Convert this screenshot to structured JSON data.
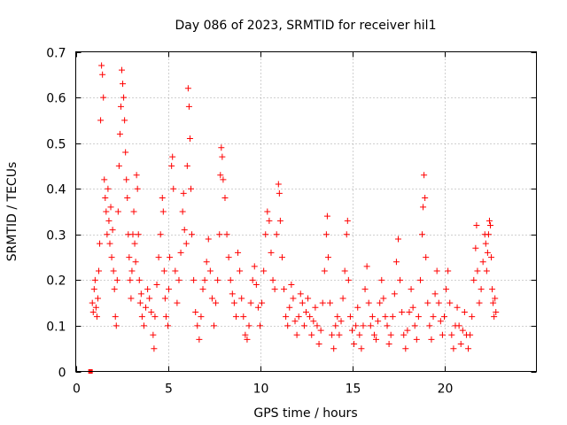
{
  "chart_data": {
    "type": "scatter",
    "title": "Day 086 of 2023, SRMTID for receiver hil1",
    "xlabel": "GPS time / hours",
    "ylabel": "SRMTID / TECUs",
    "xlim": [
      0,
      25
    ],
    "ylim": [
      0,
      0.7
    ],
    "xticks": [
      0,
      5,
      10,
      15,
      20
    ],
    "yticks": [
      0,
      0.1,
      0.2,
      0.3,
      0.4,
      0.5,
      0.6,
      0.7
    ],
    "xtick_labels": [
      "0",
      "5",
      "10",
      "15",
      "20"
    ],
    "ytick_labels": [
      "0",
      "0.1",
      "0.2",
      "0.3",
      "0.4",
      "0.5",
      "0.6",
      "0.7"
    ],
    "grid": true,
    "marker": "plus",
    "color": "#ff0000",
    "outlier_points": [
      {
        "x": 0.8,
        "y": 0.0
      }
    ],
    "series": [
      {
        "name": "SRMTID",
        "points": [
          [
            0.9,
            0.15
          ],
          [
            0.95,
            0.13
          ],
          [
            1.0,
            0.18
          ],
          [
            1.05,
            0.2
          ],
          [
            1.1,
            0.14
          ],
          [
            1.15,
            0.12
          ],
          [
            1.2,
            0.16
          ],
          [
            1.25,
            0.22
          ],
          [
            1.3,
            0.28
          ],
          [
            1.35,
            0.55
          ],
          [
            1.4,
            0.67
          ],
          [
            1.45,
            0.65
          ],
          [
            1.5,
            0.6
          ],
          [
            1.55,
            0.42
          ],
          [
            1.6,
            0.38
          ],
          [
            1.65,
            0.35
          ],
          [
            1.7,
            0.3
          ],
          [
            1.75,
            0.4
          ],
          [
            1.8,
            0.33
          ],
          [
            1.85,
            0.28
          ],
          [
            1.9,
            0.36
          ],
          [
            1.95,
            0.25
          ],
          [
            2.0,
            0.31
          ],
          [
            2.05,
            0.22
          ],
          [
            2.1,
            0.18
          ],
          [
            2.15,
            0.12
          ],
          [
            2.2,
            0.1
          ],
          [
            2.25,
            0.2
          ],
          [
            2.3,
            0.35
          ],
          [
            2.35,
            0.45
          ],
          [
            2.4,
            0.52
          ],
          [
            2.45,
            0.58
          ],
          [
            2.5,
            0.66
          ],
          [
            2.55,
            0.63
          ],
          [
            2.6,
            0.6
          ],
          [
            2.65,
            0.55
          ],
          [
            2.7,
            0.48
          ],
          [
            2.75,
            0.42
          ],
          [
            2.8,
            0.38
          ],
          [
            2.85,
            0.3
          ],
          [
            2.9,
            0.25
          ],
          [
            2.95,
            0.2
          ],
          [
            3.0,
            0.16
          ],
          [
            3.05,
            0.22
          ],
          [
            3.1,
            0.3
          ],
          [
            3.15,
            0.35
          ],
          [
            3.2,
            0.28
          ],
          [
            3.25,
            0.24
          ],
          [
            3.3,
            0.43
          ],
          [
            3.35,
            0.4
          ],
          [
            3.4,
            0.3
          ],
          [
            3.45,
            0.2
          ],
          [
            3.5,
            0.15
          ],
          [
            3.55,
            0.17
          ],
          [
            3.6,
            0.12
          ],
          [
            3.7,
            0.1
          ],
          [
            3.8,
            0.14
          ],
          [
            3.9,
            0.18
          ],
          [
            4.0,
            0.16
          ],
          [
            4.1,
            0.13
          ],
          [
            4.2,
            0.08
          ],
          [
            4.25,
            0.05
          ],
          [
            4.3,
            0.12
          ],
          [
            4.4,
            0.19
          ],
          [
            4.5,
            0.25
          ],
          [
            4.6,
            0.3
          ],
          [
            4.7,
            0.38
          ],
          [
            4.75,
            0.35
          ],
          [
            4.8,
            0.22
          ],
          [
            4.85,
            0.16
          ],
          [
            4.9,
            0.12
          ],
          [
            5.0,
            0.1
          ],
          [
            5.05,
            0.18
          ],
          [
            5.1,
            0.25
          ],
          [
            5.2,
            0.45
          ],
          [
            5.25,
            0.47
          ],
          [
            5.3,
            0.4
          ],
          [
            5.4,
            0.22
          ],
          [
            5.5,
            0.15
          ],
          [
            5.6,
            0.2
          ],
          [
            5.7,
            0.26
          ],
          [
            5.8,
            0.35
          ],
          [
            5.85,
            0.39
          ],
          [
            5.9,
            0.31
          ],
          [
            6.0,
            0.28
          ],
          [
            6.05,
            0.45
          ],
          [
            6.1,
            0.62
          ],
          [
            6.15,
            0.58
          ],
          [
            6.2,
            0.51
          ],
          [
            6.25,
            0.4
          ],
          [
            6.3,
            0.3
          ],
          [
            6.4,
            0.2
          ],
          [
            6.5,
            0.13
          ],
          [
            6.6,
            0.1
          ],
          [
            6.7,
            0.07
          ],
          [
            6.8,
            0.12
          ],
          [
            6.9,
            0.18
          ],
          [
            7.0,
            0.2
          ],
          [
            7.1,
            0.24
          ],
          [
            7.2,
            0.29
          ],
          [
            7.3,
            0.22
          ],
          [
            7.4,
            0.16
          ],
          [
            7.5,
            0.1
          ],
          [
            7.6,
            0.15
          ],
          [
            7.7,
            0.2
          ],
          [
            7.8,
            0.3
          ],
          [
            7.85,
            0.43
          ],
          [
            7.9,
            0.49
          ],
          [
            7.95,
            0.47
          ],
          [
            8.0,
            0.42
          ],
          [
            8.1,
            0.38
          ],
          [
            8.2,
            0.3
          ],
          [
            8.3,
            0.25
          ],
          [
            8.4,
            0.2
          ],
          [
            8.5,
            0.17
          ],
          [
            8.6,
            0.15
          ],
          [
            8.7,
            0.12
          ],
          [
            8.8,
            0.26
          ],
          [
            8.9,
            0.22
          ],
          [
            9.0,
            0.16
          ],
          [
            9.1,
            0.12
          ],
          [
            9.2,
            0.08
          ],
          [
            9.3,
            0.07
          ],
          [
            9.4,
            0.1
          ],
          [
            9.5,
            0.15
          ],
          [
            9.6,
            0.2
          ],
          [
            9.7,
            0.23
          ],
          [
            9.8,
            0.19
          ],
          [
            9.9,
            0.14
          ],
          [
            10.0,
            0.1
          ],
          [
            10.1,
            0.15
          ],
          [
            10.2,
            0.22
          ],
          [
            10.3,
            0.3
          ],
          [
            10.4,
            0.35
          ],
          [
            10.5,
            0.33
          ],
          [
            10.6,
            0.26
          ],
          [
            10.7,
            0.2
          ],
          [
            10.8,
            0.18
          ],
          [
            10.9,
            0.3
          ],
          [
            11.0,
            0.41
          ],
          [
            11.05,
            0.39
          ],
          [
            11.1,
            0.33
          ],
          [
            11.2,
            0.25
          ],
          [
            11.3,
            0.18
          ],
          [
            11.4,
            0.12
          ],
          [
            11.5,
            0.1
          ],
          [
            11.6,
            0.14
          ],
          [
            11.7,
            0.19
          ],
          [
            11.8,
            0.16
          ],
          [
            11.9,
            0.11
          ],
          [
            12.0,
            0.08
          ],
          [
            12.1,
            0.12
          ],
          [
            12.2,
            0.17
          ],
          [
            12.3,
            0.15
          ],
          [
            12.4,
            0.1
          ],
          [
            12.5,
            0.13
          ],
          [
            12.6,
            0.16
          ],
          [
            12.7,
            0.12
          ],
          [
            12.8,
            0.08
          ],
          [
            12.9,
            0.11
          ],
          [
            13.0,
            0.14
          ],
          [
            13.1,
            0.1
          ],
          [
            13.2,
            0.06
          ],
          [
            13.3,
            0.09
          ],
          [
            13.4,
            0.15
          ],
          [
            13.5,
            0.22
          ],
          [
            13.6,
            0.3
          ],
          [
            13.65,
            0.34
          ],
          [
            13.7,
            0.25
          ],
          [
            13.8,
            0.15
          ],
          [
            13.9,
            0.08
          ],
          [
            14.0,
            0.05
          ],
          [
            14.1,
            0.1
          ],
          [
            14.2,
            0.12
          ],
          [
            14.3,
            0.08
          ],
          [
            14.4,
            0.11
          ],
          [
            14.5,
            0.16
          ],
          [
            14.6,
            0.22
          ],
          [
            14.7,
            0.3
          ],
          [
            14.75,
            0.33
          ],
          [
            14.8,
            0.2
          ],
          [
            14.9,
            0.12
          ],
          [
            15.0,
            0.09
          ],
          [
            15.1,
            0.06
          ],
          [
            15.2,
            0.1
          ],
          [
            15.3,
            0.14
          ],
          [
            15.4,
            0.08
          ],
          [
            15.5,
            0.05
          ],
          [
            15.6,
            0.1
          ],
          [
            15.7,
            0.18
          ],
          [
            15.8,
            0.23
          ],
          [
            15.9,
            0.15
          ],
          [
            16.0,
            0.1
          ],
          [
            16.1,
            0.12
          ],
          [
            16.2,
            0.08
          ],
          [
            16.3,
            0.07
          ],
          [
            16.4,
            0.11
          ],
          [
            16.5,
            0.15
          ],
          [
            16.6,
            0.2
          ],
          [
            16.7,
            0.16
          ],
          [
            16.8,
            0.12
          ],
          [
            16.9,
            0.1
          ],
          [
            17.0,
            0.06
          ],
          [
            17.1,
            0.08
          ],
          [
            17.2,
            0.12
          ],
          [
            17.3,
            0.17
          ],
          [
            17.4,
            0.24
          ],
          [
            17.5,
            0.29
          ],
          [
            17.6,
            0.2
          ],
          [
            17.7,
            0.13
          ],
          [
            17.8,
            0.08
          ],
          [
            17.9,
            0.05
          ],
          [
            18.0,
            0.09
          ],
          [
            18.1,
            0.13
          ],
          [
            18.2,
            0.18
          ],
          [
            18.3,
            0.14
          ],
          [
            18.4,
            0.1
          ],
          [
            18.5,
            0.07
          ],
          [
            18.6,
            0.12
          ],
          [
            18.7,
            0.2
          ],
          [
            18.8,
            0.3
          ],
          [
            18.85,
            0.36
          ],
          [
            18.9,
            0.43
          ],
          [
            18.95,
            0.38
          ],
          [
            19.0,
            0.25
          ],
          [
            19.1,
            0.15
          ],
          [
            19.2,
            0.1
          ],
          [
            19.3,
            0.07
          ],
          [
            19.4,
            0.12
          ],
          [
            19.5,
            0.17
          ],
          [
            19.6,
            0.22
          ],
          [
            19.7,
            0.15
          ],
          [
            19.8,
            0.11
          ],
          [
            19.9,
            0.08
          ],
          [
            20.0,
            0.12
          ],
          [
            20.1,
            0.18
          ],
          [
            20.2,
            0.22
          ],
          [
            20.3,
            0.15
          ],
          [
            20.4,
            0.08
          ],
          [
            20.5,
            0.05
          ],
          [
            20.6,
            0.1
          ],
          [
            20.7,
            0.14
          ],
          [
            20.8,
            0.1
          ],
          [
            20.9,
            0.06
          ],
          [
            21.0,
            0.09
          ],
          [
            21.1,
            0.13
          ],
          [
            21.2,
            0.08
          ],
          [
            21.3,
            0.05
          ],
          [
            21.4,
            0.08
          ],
          [
            21.5,
            0.12
          ],
          [
            21.6,
            0.2
          ],
          [
            21.7,
            0.27
          ],
          [
            21.75,
            0.32
          ],
          [
            21.8,
            0.22
          ],
          [
            21.9,
            0.15
          ],
          [
            22.0,
            0.18
          ],
          [
            22.1,
            0.24
          ],
          [
            22.2,
            0.3
          ],
          [
            22.25,
            0.28
          ],
          [
            22.3,
            0.22
          ],
          [
            22.35,
            0.26
          ],
          [
            22.4,
            0.3
          ],
          [
            22.45,
            0.33
          ],
          [
            22.5,
            0.32
          ],
          [
            22.55,
            0.25
          ],
          [
            22.6,
            0.18
          ],
          [
            22.65,
            0.15
          ],
          [
            22.7,
            0.12
          ],
          [
            22.75,
            0.16
          ],
          [
            22.8,
            0.13
          ]
        ]
      }
    ]
  }
}
